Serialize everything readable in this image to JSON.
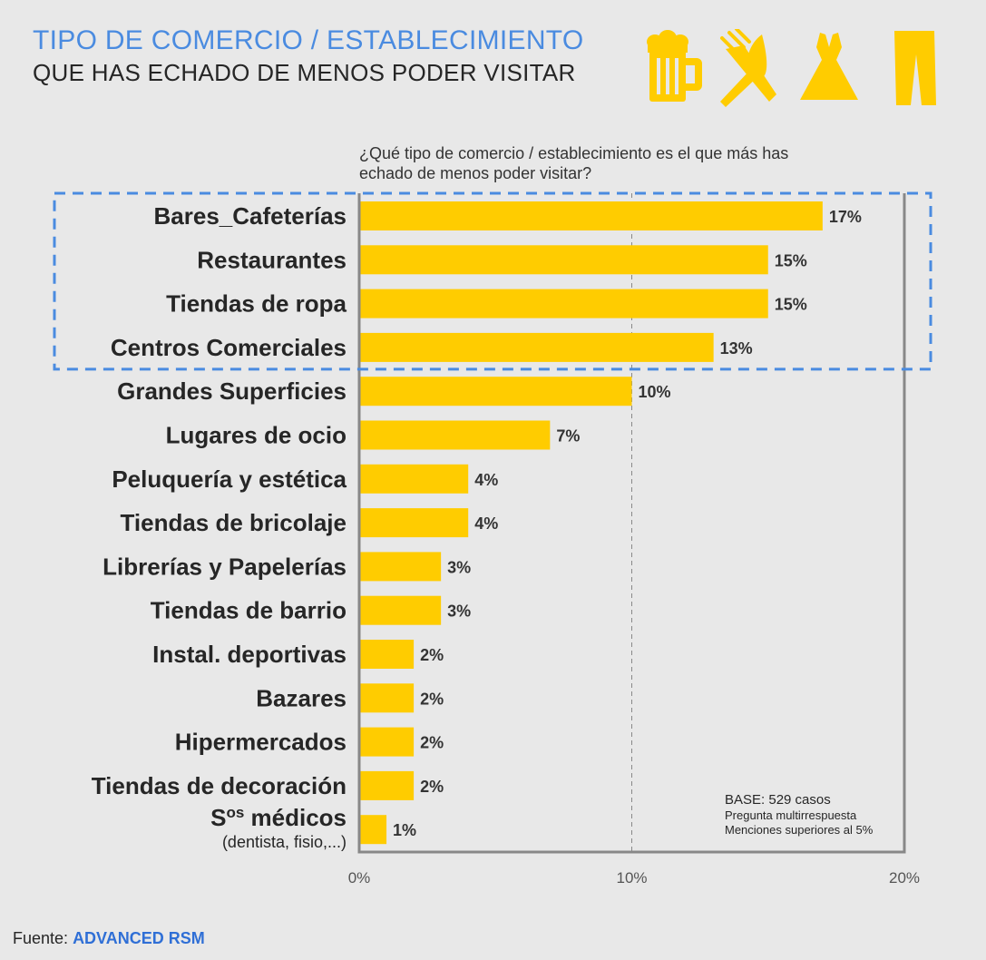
{
  "header": {
    "title": "TIPO DE COMERCIO / ESTABLECIMIENTO",
    "subtitle": "QUE HAS ECHADO DE MENOS PODER VISITAR"
  },
  "icons": [
    "beer-mug-icon",
    "fork-knife-icon",
    "dress-icon",
    "trousers-icon"
  ],
  "question": "¿Qué tipo de comercio / establecimiento es el que más has echado de menos poder visitar?",
  "chart_data": {
    "type": "bar",
    "orientation": "horizontal",
    "categories": [
      "Bares_Cafeterías",
      "Restaurantes",
      "Tiendas de ropa",
      "Centros Comerciales",
      "Grandes Superficies",
      "Lugares de ocio",
      "Peluquería y estética",
      "Tiendas de bricolaje",
      "Librerías y Papelerías",
      "Tiendas de barrio",
      "Instal. deportivas",
      "Bazares",
      "Hipermercados",
      "Tiendas de decoración",
      "Sos médicos"
    ],
    "category_sublabels": {
      "14": "(dentista, fisio,...)"
    },
    "values": [
      17,
      15,
      15,
      13,
      10,
      7,
      4,
      4,
      3,
      3,
      2,
      2,
      2,
      2,
      1
    ],
    "value_labels": [
      "17%",
      "15%",
      "15%",
      "13%",
      "10%",
      "7%",
      "4%",
      "4%",
      "3%",
      "3%",
      "2%",
      "2%",
      "2%",
      "2%",
      "1%"
    ],
    "xlim": [
      0,
      20
    ],
    "x_ticks": [
      0,
      10,
      20
    ],
    "x_tick_labels": [
      "0%",
      "10%",
      "20%"
    ],
    "gridline_at": 10,
    "highlighted_top_n": 4,
    "bar_color": "#ffcc00",
    "highlight_color": "#4a8be0"
  },
  "base_note": {
    "line1": "BASE: 529 casos",
    "line2": "Pregunta multirrespuesta",
    "line3": "Menciones superiores al 5%"
  },
  "source": {
    "prefix": "Fuente:",
    "brand": "ADVANCED RSM"
  }
}
